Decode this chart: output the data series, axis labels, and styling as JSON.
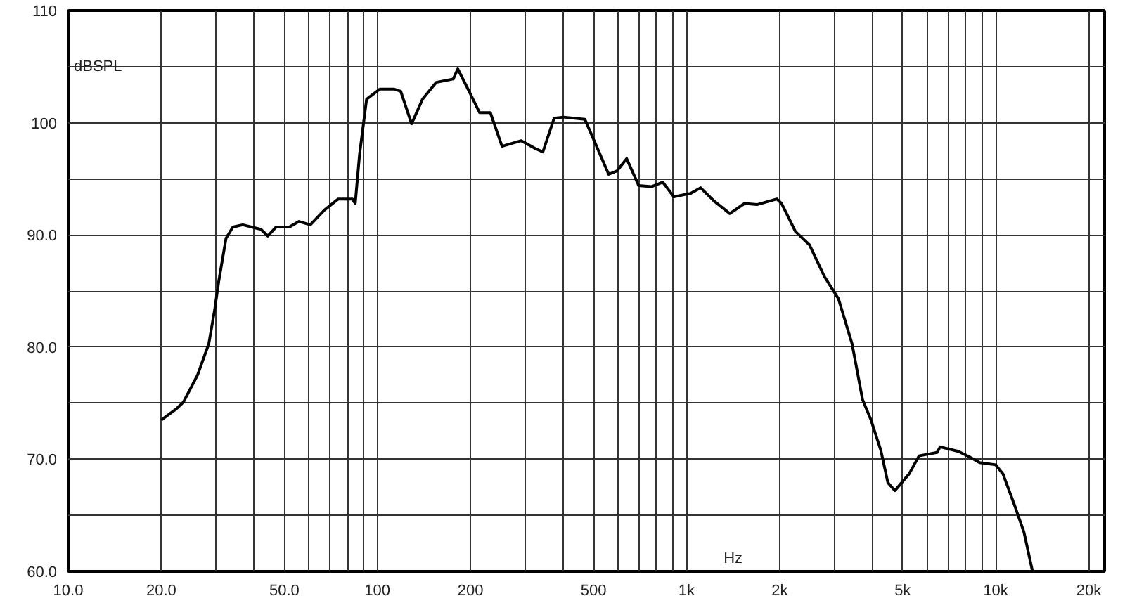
{
  "chart_data": {
    "type": "line",
    "xlabel": "Hz",
    "ylabel": "dBSPL",
    "log": "x",
    "grid": true,
    "marker": "none",
    "line_style": "solid",
    "xlim": [
      10,
      22500
    ],
    "ylim": [
      60,
      110
    ],
    "xticks": [
      {
        "value": 10,
        "label": "10.0"
      },
      {
        "value": 20,
        "label": "20.0"
      },
      {
        "value": 30,
        "label": null
      },
      {
        "value": 40,
        "label": null
      },
      {
        "value": 50,
        "label": "50.0"
      },
      {
        "value": 60,
        "label": null
      },
      {
        "value": 70,
        "label": null
      },
      {
        "value": 80,
        "label": null
      },
      {
        "value": 90,
        "label": null
      },
      100,
      200,
      {
        "value": 300,
        "label": null
      },
      {
        "value": 400,
        "label": null
      },
      500,
      {
        "value": 600,
        "label": null
      },
      {
        "value": 700,
        "label": null
      },
      {
        "value": 800,
        "label": null
      },
      {
        "value": 900,
        "label": null
      },
      {
        "value": 1000,
        "label": "1k"
      },
      {
        "value": 2000,
        "label": "2k"
      },
      {
        "value": 3000,
        "label": null
      },
      {
        "value": 4000,
        "label": null
      },
      {
        "value": 5000,
        "label": "5k"
      },
      {
        "value": 6000,
        "label": null
      },
      {
        "value": 7000,
        "label": null
      },
      {
        "value": 8000,
        "label": null
      },
      {
        "value": 9000,
        "label": null
      },
      {
        "value": 10000,
        "label": "10k"
      },
      {
        "value": 20000,
        "label": "20k"
      }
    ],
    "yticks": [
      {
        "value": 60,
        "label": "60.0"
      },
      {
        "value": 65,
        "label": null
      },
      {
        "value": 70,
        "label": "70.0"
      },
      {
        "value": 75,
        "label": null
      },
      {
        "value": 80,
        "label": "80.0"
      },
      {
        "value": 85,
        "label": null
      },
      {
        "value": 90,
        "label": "90.0"
      },
      {
        "value": 95,
        "label": null
      },
      100,
      {
        "value": 105,
        "label": null
      },
      110
    ],
    "series": [
      {
        "color": "#000000",
        "x": [
          20,
          22.4,
          23.6,
          26.2,
          28.5,
          29.8,
          30.7,
          32.4,
          34.1,
          36.7,
          42,
          44.2,
          47,
          51.9,
          55.8,
          60.7,
          67.3,
          74.7,
          83,
          84.8,
          87.6,
          92.3,
          102,
          113,
          119,
          129,
          140,
          155,
          176,
          182,
          198,
          214,
          232,
          253,
          292,
          324,
          343,
          373,
          400,
          469,
          521,
          560,
          596,
          640,
          700,
          770,
          838,
          910,
          1030,
          1110,
          1230,
          1380,
          1540,
          1690,
          1960,
          2030,
          2250,
          2500,
          2790,
          3100,
          3430,
          3710,
          3950,
          4250,
          4480,
          4720,
          5250,
          5650,
          6460,
          6610,
          7570,
          8240,
          8870,
          10000,
          10550,
          11470,
          12340,
          13150
        ],
        "values": [
          73.5,
          74.5,
          75.1,
          77.5,
          80.3,
          83.4,
          85.9,
          89.7,
          90.7,
          90.9,
          90.5,
          89.9,
          90.7,
          90.7,
          91.2,
          90.9,
          92.2,
          93.2,
          93.2,
          92.8,
          97.2,
          102.1,
          103,
          103,
          102.8,
          99.9,
          102.1,
          103.6,
          103.9,
          104.8,
          102.8,
          100.9,
          100.9,
          97.9,
          98.4,
          97.7,
          97.4,
          100.4,
          100.5,
          100.3,
          97.4,
          95.4,
          95.7,
          96.8,
          94.4,
          94.3,
          94.7,
          93.4,
          93.7,
          94.2,
          93,
          91.9,
          92.8,
          92.7,
          93.2,
          92.8,
          90.3,
          89.1,
          86.3,
          84.3,
          80.3,
          75.3,
          73.5,
          70.8,
          67.9,
          67.2,
          68.7,
          70.3,
          70.6,
          71.1,
          70.7,
          70.2,
          69.7,
          69.5,
          68.7,
          66,
          63.5,
          60
        ]
      }
    ]
  }
}
